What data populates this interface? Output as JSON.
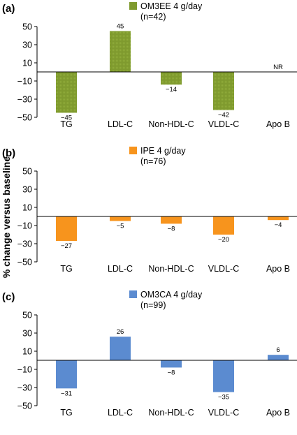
{
  "ylabel": "% change versus baseline",
  "chart_data": [
    {
      "type": "bar",
      "panel": "(a)",
      "legend": [
        "OM3EE 4 g/day",
        "(n=42)"
      ],
      "color": "#7f9a2e",
      "categories": [
        "TG",
        "LDL-C",
        "Non-HDL-C",
        "VLDL-C",
        "Apo B"
      ],
      "values": [
        -45,
        45,
        -14,
        -42,
        null
      ],
      "labels": [
        "−45",
        "45",
        "−14",
        "−42",
        "NR"
      ],
      "ylabel": "% change versus baseline",
      "ylim": [
        -50,
        50
      ],
      "yticks": [
        50,
        30,
        10,
        -10,
        -30,
        -50
      ],
      "ytick_labels": [
        "50",
        "30",
        "10",
        "−10",
        "−30",
        "−50"
      ],
      "legend_placement": "top-center"
    },
    {
      "type": "bar",
      "panel": "(b)",
      "legend": [
        "IPE 4 g/day",
        "(n=76)"
      ],
      "color": "#f7941d",
      "categories": [
        "TG",
        "LDL-C",
        "Non-HDL-C",
        "VLDL-C",
        "Apo B"
      ],
      "values": [
        -27,
        -5,
        -8,
        -20,
        -4
      ],
      "labels": [
        "−27",
        "−5",
        "−8",
        "−20",
        "−4"
      ],
      "ylabel": "% change versus baseline",
      "ylim": [
        -50,
        50
      ],
      "yticks": [
        50,
        30,
        10,
        -10,
        -30,
        -50
      ],
      "ytick_labels": [
        "50",
        "30",
        "10",
        "−10",
        "−30",
        "−50"
      ],
      "legend_placement": "top-center"
    },
    {
      "type": "bar",
      "panel": "(c)",
      "legend": [
        "OM3CA 4 g/day",
        "(n=99)"
      ],
      "color": "#5b8bd0",
      "categories": [
        "TG",
        "LDL-C",
        "Non-HDL-C",
        "VLDL-C",
        "Apo B"
      ],
      "values": [
        -31,
        26,
        -8,
        -35,
        6
      ],
      "labels": [
        "−31",
        "26",
        "−8",
        "−35",
        "6"
      ],
      "ylabel": "% change versus baseline",
      "ylim": [
        -50,
        50
      ],
      "yticks": [
        50,
        30,
        10,
        -10,
        -30,
        -50
      ],
      "ytick_labels": [
        "50",
        "30",
        "10",
        "−10",
        "−30",
        "−50"
      ],
      "legend_placement": "top-center"
    }
  ]
}
